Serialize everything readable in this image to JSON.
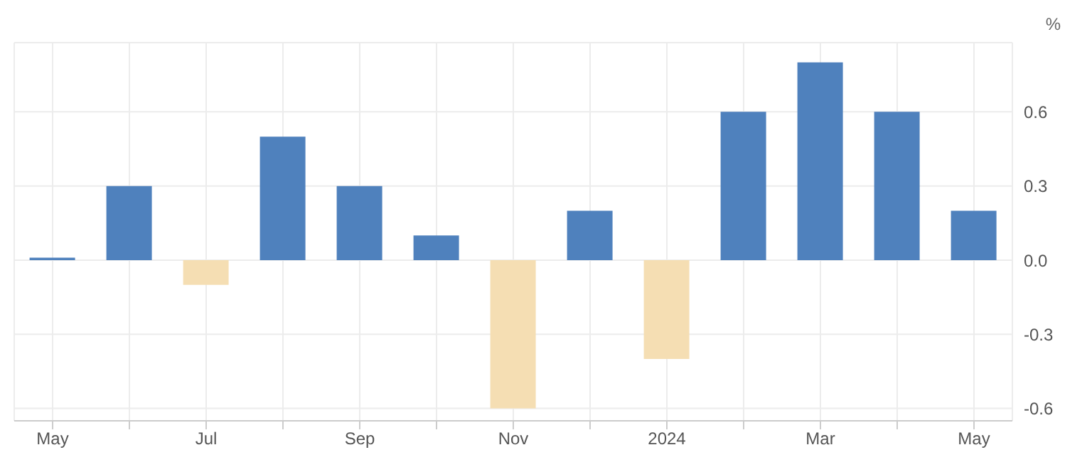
{
  "chart_data": {
    "type": "bar",
    "ylabel": "%",
    "categories": [
      "May",
      null,
      "Jul",
      null,
      "Sep",
      null,
      "Nov",
      null,
      "2024",
      null,
      "Mar",
      null,
      "May"
    ],
    "values": [
      0.01,
      0.3,
      -0.1,
      0.5,
      0.3,
      0.1,
      -0.6,
      0.2,
      -0.4,
      0.6,
      0.8,
      0.6,
      0.2
    ],
    "colors": [
      "#4f81bd",
      "#4f81bd",
      "#f5deb3",
      "#4f81bd",
      "#4f81bd",
      "#4f81bd",
      "#f5deb3",
      "#4f81bd",
      "#f5deb3",
      "#4f81bd",
      "#4f81bd",
      "#4f81bd",
      "#4f81bd"
    ],
    "ylim": [
      -0.65,
      0.88
    ],
    "yticks": [
      {
        "value": -0.6,
        "label": "-0.6"
      },
      {
        "value": -0.3,
        "label": "-0.3"
      },
      {
        "value": 0,
        "label": "0.0"
      },
      {
        "value": 0.3,
        "label": "0.3"
      },
      {
        "value": 0.6,
        "label": "0.6"
      }
    ],
    "grid": true,
    "legend": false
  }
}
